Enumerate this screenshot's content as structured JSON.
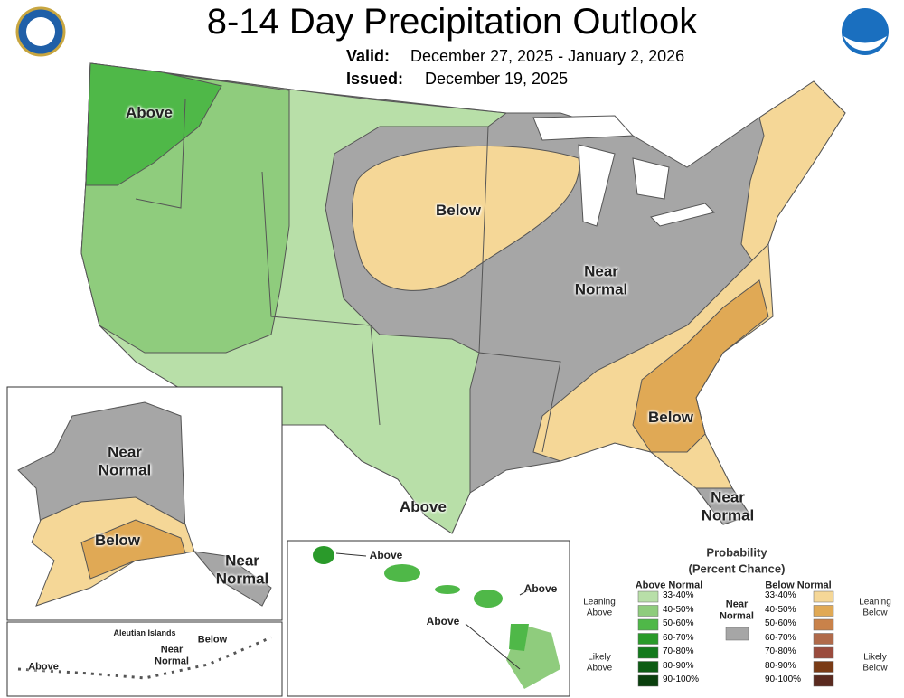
{
  "header": {
    "title": "8-14 Day Precipitation Outlook",
    "valid_label": "Valid:",
    "valid_dates": "December 27, 2025 - January 2, 2026",
    "issued_label": "Issued:",
    "issued_date": "December 19, 2025"
  },
  "map_labels": [
    "Above",
    "Below",
    "Near Normal",
    "Below",
    "Near Normal",
    "Above",
    "Near Normal",
    "Below",
    "Near Normal",
    "Above",
    "Above",
    "Above",
    "Above",
    "Near Normal",
    "Below"
  ],
  "aleutian_title": "Aleutian Islands",
  "legend": {
    "title": "Probability",
    "subtitle": "(Percent Chance)",
    "above_heading": "Above Normal",
    "below_heading": "Below Normal",
    "near_normal": "Near Normal",
    "near_color": "#a6a6a6",
    "leaning_above": "Leaning Above",
    "likely_above": "Likely Above",
    "leaning_below": "Leaning Below",
    "likely_below": "Likely Below",
    "above_bins": [
      {
        "label": "33-40%",
        "color": "#b8dfa8"
      },
      {
        "label": "40-50%",
        "color": "#8fcc7d"
      },
      {
        "label": "50-60%",
        "color": "#4fb848"
      },
      {
        "label": "60-70%",
        "color": "#2a9a2a"
      },
      {
        "label": "70-80%",
        "color": "#137a1c"
      },
      {
        "label": "80-90%",
        "color": "#0d5c14"
      },
      {
        "label": "90-100%",
        "color": "#0a3f0d"
      }
    ],
    "below_bins": [
      {
        "label": "33-40%",
        "color": "#f5d797"
      },
      {
        "label": "40-50%",
        "color": "#e0a955"
      },
      {
        "label": "50-60%",
        "color": "#c9824a"
      },
      {
        "label": "60-70%",
        "color": "#b06a4a"
      },
      {
        "label": "70-80%",
        "color": "#9a4b3d"
      },
      {
        "label": "80-90%",
        "color": "#7a3b16"
      },
      {
        "label": "90-100%",
        "color": "#5a2a1f"
      }
    ]
  }
}
